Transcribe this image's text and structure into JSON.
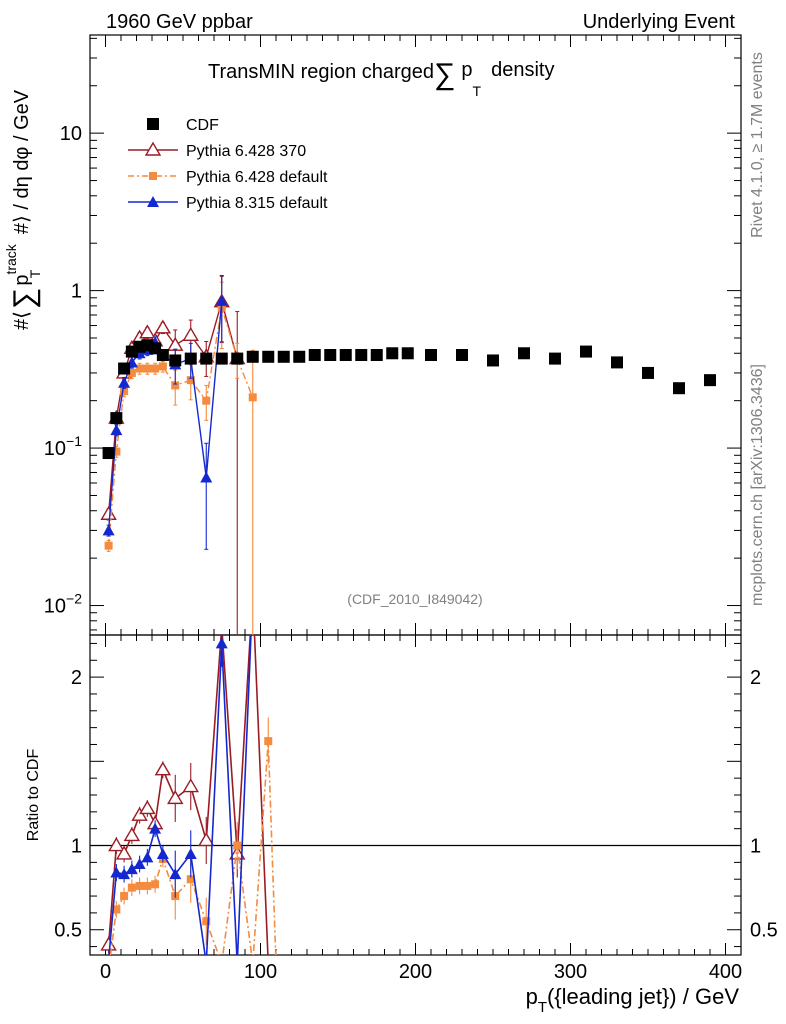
{
  "header": {
    "left": "1960 GeV ppbar",
    "right": "Underlying Event"
  },
  "side": {
    "rivet": "Rivet 4.1.0, ≥ 1.7M events",
    "mcplots": "mcplots.cern.ch [arXiv:1306.3436]"
  },
  "colors": {
    "cdf": "#000000",
    "py370": "#9b1b24",
    "pydef": "#f58b3e",
    "py8": "#1428d0"
  },
  "chart_data": [
    {
      "type": "scatter",
      "panel": "main",
      "title": "TransMIN region charged ∑ p_T density",
      "xlabel": "p_T({leading jet}) / GeV",
      "ylabel": "#⟨ ∑ p_T^track #⟩ / dη dφ / GeV",
      "xlim": [
        -10,
        410
      ],
      "yscale": "log",
      "ylim": [
        0.0065,
        42
      ],
      "ytick_labels": [
        "10⁻²",
        "10⁻¹",
        "1",
        "10"
      ],
      "xtick_labels": [
        "0",
        "100",
        "200",
        "300",
        "400"
      ],
      "watermark": "(CDF_2010_I849042)",
      "legend": {
        "position": "top-left",
        "entries": [
          "CDF",
          "Pythia 6.428 370",
          "Pythia 6.428 default",
          "Pythia 8.315 default"
        ]
      },
      "series": [
        {
          "name": "CDF",
          "marker": "square",
          "line": "none",
          "x": [
            2,
            7,
            12,
            17,
            22,
            27,
            32,
            37,
            45,
            55,
            65,
            75,
            85,
            95,
            105,
            115,
            125,
            135,
            145,
            155,
            165,
            175,
            185,
            195,
            210,
            230,
            250,
            270,
            290,
            310,
            330,
            350,
            370,
            390
          ],
          "y": [
            0.093,
            0.155,
            0.32,
            0.41,
            0.44,
            0.45,
            0.43,
            0.39,
            0.36,
            0.37,
            0.37,
            0.37,
            0.37,
            0.38,
            0.38,
            0.38,
            0.38,
            0.39,
            0.39,
            0.39,
            0.39,
            0.39,
            0.4,
            0.4,
            0.39,
            0.39,
            0.36,
            0.4,
            0.37,
            0.41,
            0.35,
            0.3,
            0.24,
            0.27
          ]
        },
        {
          "name": "Pythia 6.428 370",
          "marker": "open-triangle",
          "line": "solid",
          "x": [
            2,
            7,
            12,
            17,
            22,
            27,
            32,
            37,
            45,
            55,
            65,
            75,
            85
          ],
          "y": [
            0.038,
            0.155,
            0.3,
            0.43,
            0.5,
            0.54,
            0.48,
            0.58,
            0.45,
            0.52,
            0.38,
            0.85,
            0.37
          ]
        },
        {
          "name": "Pythia 6.428 default",
          "marker": "small-square",
          "line": "dash-dot",
          "x": [
            2,
            7,
            12,
            17,
            22,
            27,
            32,
            37,
            45,
            55,
            65,
            75,
            85,
            95
          ],
          "y": [
            0.024,
            0.095,
            0.23,
            0.3,
            0.32,
            0.32,
            0.32,
            0.33,
            0.25,
            0.27,
            0.2,
            0.78,
            0.37,
            0.21
          ]
        },
        {
          "name": "Pythia 8.315 default",
          "marker": "filled-triangle",
          "line": "solid",
          "x": [
            2,
            7,
            12,
            17,
            22,
            27,
            32,
            37,
            45,
            55,
            65,
            75
          ],
          "y": [
            0.03,
            0.13,
            0.26,
            0.35,
            0.4,
            0.42,
            0.47,
            0.39,
            0.34,
            0.37,
            0.065,
            0.86
          ]
        }
      ]
    },
    {
      "type": "line",
      "panel": "ratio",
      "ylabel": "Ratio to CDF",
      "xlabel": "p_T({leading jet}) / GeV",
      "xlim": [
        -10,
        410
      ],
      "ylim": [
        0.35,
        2.25
      ],
      "ytick_labels": [
        "0.5",
        "1",
        "2"
      ],
      "xtick_labels": [
        "0",
        "100",
        "200",
        "300",
        "400"
      ],
      "reference_line": 1,
      "series": [
        {
          "name": "Pythia 6.428 370",
          "x": [
            2,
            7,
            12,
            17,
            22,
            27,
            32,
            37,
            45,
            55,
            65,
            75,
            85,
            95,
            105
          ],
          "y": [
            0.41,
            1.0,
            0.95,
            1.06,
            1.18,
            1.22,
            1.13,
            1.45,
            1.28,
            1.35,
            1.03,
            2.3,
            0.95,
            2.5,
            0.3
          ]
        },
        {
          "name": "Pythia 6.428 default",
          "x": [
            2,
            7,
            12,
            17,
            22,
            27,
            32,
            37,
            45,
            55,
            65,
            75,
            85,
            95,
            105,
            110
          ],
          "y": [
            0.26,
            0.62,
            0.7,
            0.75,
            0.76,
            0.76,
            0.77,
            0.92,
            0.7,
            0.8,
            0.55,
            0.3,
            1.0,
            0.3,
            1.62,
            0.3
          ]
        },
        {
          "name": "Pythia 8.315 default",
          "x": [
            2,
            7,
            12,
            17,
            22,
            27,
            32,
            37,
            45,
            55,
            65,
            75,
            85,
            95
          ],
          "y": [
            0.32,
            0.84,
            0.83,
            0.86,
            0.89,
            0.93,
            1.1,
            0.95,
            0.83,
            0.95,
            0.3,
            2.2,
            0.3,
            2.5
          ]
        }
      ]
    }
  ]
}
